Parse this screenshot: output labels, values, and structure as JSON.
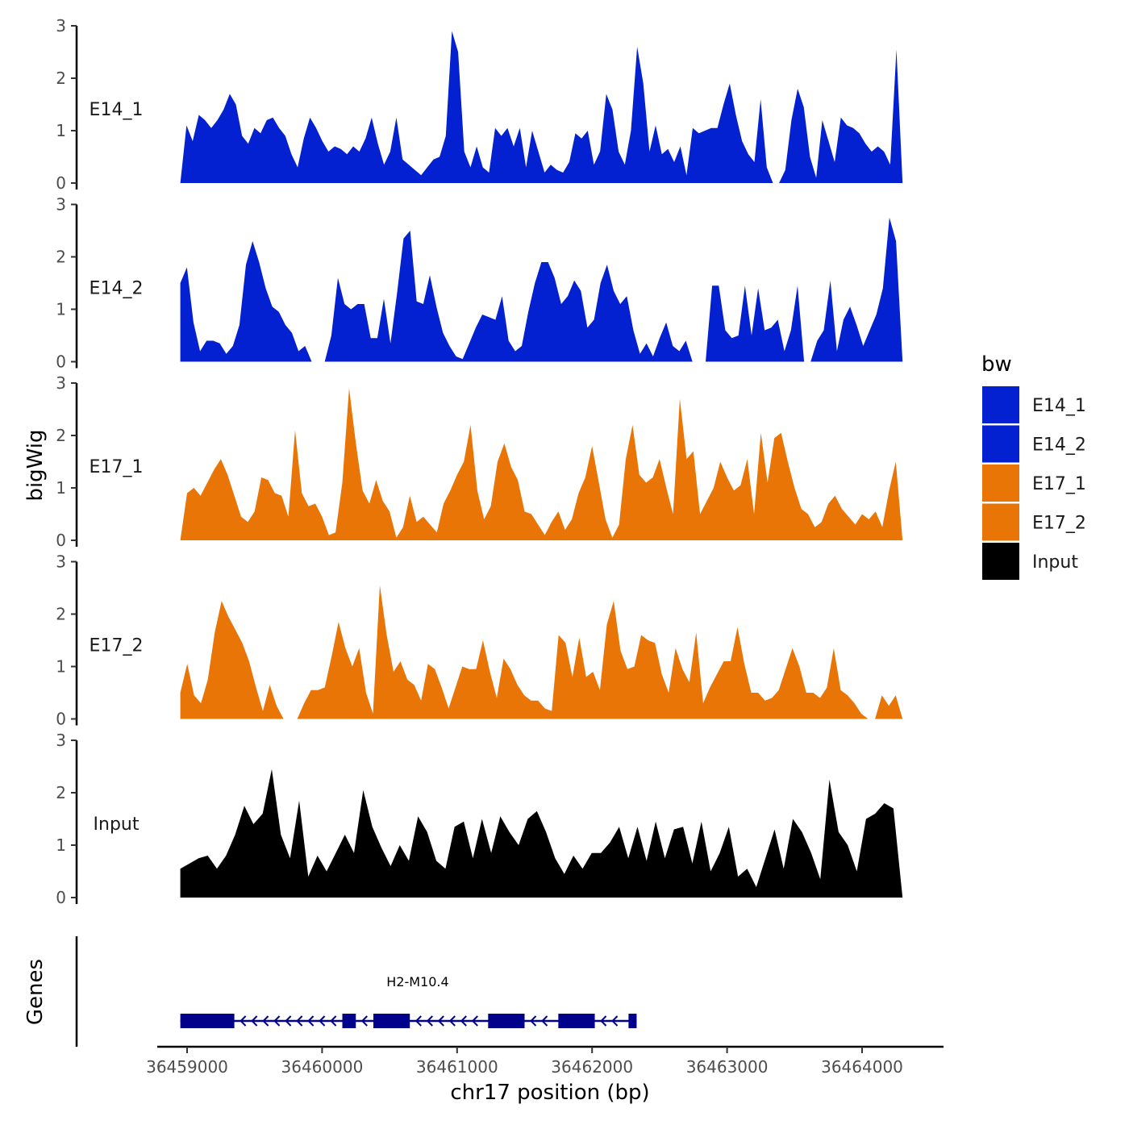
{
  "chart_data": {
    "type": "area",
    "title": "",
    "ylabel": "bigWig",
    "xlabel": "chr17 position (bp)",
    "ylim": [
      0,
      3
    ],
    "yticks": [
      0,
      1,
      2,
      3
    ],
    "xticks": [
      36459000,
      36460000,
      36461000,
      36462000,
      36463000,
      36464000
    ],
    "xlim": [
      36458700,
      36464650
    ],
    "data_range": [
      36458950,
      36464300
    ],
    "legend": {
      "title": "bw",
      "position": "right",
      "entries": [
        {
          "name": "E14_1",
          "color": "#0320D1"
        },
        {
          "name": "E14_2",
          "color": "#0320D1"
        },
        {
          "name": "E17_1",
          "color": "#E87506"
        },
        {
          "name": "E17_2",
          "color": "#E87506"
        },
        {
          "name": "Input",
          "color": "#000000"
        }
      ]
    },
    "series": [
      {
        "name": "E14_1",
        "color": "#0320D1",
        "values": [
          0.0,
          1.1,
          0.8,
          1.3,
          1.2,
          1.05,
          1.2,
          1.4,
          1.7,
          1.5,
          0.9,
          0.75,
          1.05,
          0.95,
          1.2,
          1.25,
          1.05,
          0.9,
          0.55,
          0.3,
          0.85,
          1.25,
          1.05,
          0.8,
          0.6,
          0.7,
          0.65,
          0.55,
          0.7,
          0.6,
          0.85,
          1.25,
          0.75,
          0.35,
          0.6,
          1.25,
          0.45,
          0.35,
          0.25,
          0.15,
          0.3,
          0.45,
          0.5,
          0.9,
          2.9,
          2.5,
          0.6,
          0.3,
          0.7,
          0.3,
          0.2,
          1.05,
          0.9,
          1.05,
          0.7,
          1.05,
          0.3,
          1.0,
          0.6,
          0.2,
          0.35,
          0.25,
          0.2,
          0.4,
          0.95,
          0.85,
          1.0,
          0.35,
          0.6,
          1.7,
          1.4,
          0.6,
          0.35,
          1.0,
          2.6,
          1.9,
          0.6,
          1.1,
          0.55,
          0.65,
          0.4,
          0.7,
          0.15,
          1.05,
          0.95,
          1.0,
          1.05,
          1.05,
          1.5,
          1.9,
          1.3,
          0.8,
          0.55,
          0.4,
          1.6,
          0.3,
          0.0,
          0.0,
          0.25,
          1.2,
          1.8,
          1.45,
          0.5,
          0.1,
          1.2,
          0.8,
          0.4,
          1.25,
          1.1,
          1.05,
          0.95,
          0.75,
          0.6,
          0.7,
          0.6,
          0.35,
          2.55,
          0.0
        ]
      },
      {
        "name": "E14_2",
        "color": "#0320D1",
        "values": [
          1.5,
          1.8,
          0.75,
          0.2,
          0.4,
          0.4,
          0.35,
          0.15,
          0.3,
          0.7,
          1.85,
          2.3,
          1.9,
          1.4,
          1.05,
          0.95,
          0.7,
          0.55,
          0.2,
          0.3,
          0.0,
          0.0,
          0.0,
          0.5,
          1.6,
          1.1,
          1.0,
          1.1,
          1.1,
          0.45,
          0.45,
          1.2,
          0.35,
          1.3,
          2.35,
          2.5,
          1.15,
          1.1,
          1.65,
          1.05,
          0.55,
          0.3,
          0.1,
          0.05,
          0.35,
          0.65,
          0.9,
          0.85,
          0.8,
          1.25,
          0.4,
          0.2,
          0.3,
          0.95,
          1.5,
          1.9,
          1.9,
          1.6,
          1.1,
          1.25,
          1.55,
          1.35,
          0.65,
          0.8,
          1.5,
          1.85,
          1.35,
          1.1,
          1.25,
          0.6,
          0.15,
          0.35,
          0.1,
          0.45,
          0.75,
          0.3,
          0.2,
          0.4,
          0.0,
          0.0,
          0.0,
          1.45,
          1.45,
          0.6,
          0.45,
          0.5,
          1.45,
          0.5,
          1.4,
          0.6,
          0.65,
          0.8,
          0.2,
          0.6,
          1.45,
          0.0,
          0.0,
          0.4,
          0.6,
          1.55,
          0.2,
          0.8,
          1.05,
          0.7,
          0.3,
          0.6,
          0.9,
          1.4,
          2.75,
          2.3,
          0.0
        ]
      },
      {
        "name": "E17_1",
        "color": "#E87506",
        "values": [
          0.0,
          0.9,
          1.0,
          0.85,
          1.1,
          1.35,
          1.55,
          1.25,
          0.85,
          0.45,
          0.35,
          0.55,
          1.2,
          1.15,
          0.9,
          0.85,
          0.45,
          2.1,
          0.9,
          0.65,
          0.7,
          0.45,
          0.1,
          0.15,
          1.1,
          2.9,
          1.85,
          0.95,
          0.7,
          1.15,
          0.75,
          0.55,
          0.05,
          0.25,
          0.85,
          0.35,
          0.45,
          0.3,
          0.15,
          0.7,
          0.95,
          1.25,
          1.5,
          2.2,
          0.95,
          0.4,
          0.65,
          1.5,
          1.85,
          1.4,
          1.15,
          0.55,
          0.5,
          0.3,
          0.1,
          0.35,
          0.55,
          0.2,
          0.4,
          0.9,
          1.2,
          1.8,
          1.1,
          0.4,
          0.05,
          0.3,
          1.55,
          2.2,
          1.25,
          1.1,
          1.2,
          1.55,
          1.0,
          0.5,
          2.7,
          1.55,
          1.7,
          0.5,
          0.75,
          1.0,
          1.5,
          1.2,
          0.95,
          1.05,
          1.55,
          0.5,
          2.05,
          1.1,
          1.95,
          2.05,
          1.5,
          1.0,
          0.6,
          0.5,
          0.25,
          0.35,
          0.7,
          0.85,
          0.6,
          0.45,
          0.3,
          0.5,
          0.4,
          0.55,
          0.25,
          0.95,
          1.5,
          0.0
        ]
      },
      {
        "name": "E17_2",
        "color": "#E87506",
        "values": [
          0.5,
          1.05,
          0.45,
          0.3,
          0.75,
          1.65,
          2.25,
          1.95,
          1.7,
          1.45,
          1.1,
          0.6,
          0.15,
          0.65,
          0.25,
          0.0,
          0.0,
          0.0,
          0.3,
          0.55,
          0.55,
          0.6,
          1.2,
          1.85,
          1.35,
          1.0,
          1.35,
          0.5,
          0.1,
          2.55,
          1.6,
          0.9,
          1.1,
          0.75,
          0.65,
          0.35,
          1.05,
          0.95,
          0.6,
          0.2,
          0.6,
          1.0,
          0.95,
          0.95,
          1.5,
          0.9,
          0.4,
          1.15,
          0.95,
          0.65,
          0.45,
          0.35,
          0.35,
          0.2,
          0.15,
          1.6,
          1.45,
          0.8,
          1.55,
          0.8,
          0.9,
          0.55,
          1.8,
          2.25,
          1.3,
          0.95,
          1.0,
          1.6,
          1.5,
          1.45,
          0.85,
          0.5,
          1.35,
          0.95,
          0.7,
          1.65,
          0.3,
          0.6,
          0.85,
          1.1,
          1.1,
          1.75,
          1.05,
          0.5,
          0.5,
          0.35,
          0.4,
          0.55,
          0.95,
          1.35,
          1.0,
          0.5,
          0.5,
          0.4,
          0.6,
          1.35,
          0.55,
          0.45,
          0.3,
          0.1,
          0.0,
          0.0,
          0.45,
          0.25,
          0.45,
          0.0
        ]
      },
      {
        "name": "Input",
        "color": "#000000",
        "values": [
          0.55,
          0.65,
          0.75,
          0.8,
          0.55,
          0.8,
          1.2,
          1.75,
          1.4,
          1.6,
          2.45,
          1.2,
          0.75,
          1.85,
          0.4,
          0.8,
          0.5,
          0.85,
          1.2,
          0.85,
          2.05,
          1.35,
          0.95,
          0.6,
          1.0,
          0.7,
          1.55,
          1.25,
          0.7,
          0.55,
          1.35,
          1.45,
          0.75,
          1.5,
          0.85,
          1.55,
          1.25,
          1.0,
          1.5,
          1.65,
          1.25,
          0.75,
          0.45,
          0.8,
          0.55,
          0.85,
          0.85,
          1.05,
          1.35,
          0.75,
          1.35,
          0.7,
          1.45,
          0.75,
          1.3,
          1.35,
          0.65,
          1.45,
          0.5,
          0.85,
          1.35,
          0.4,
          0.55,
          0.2,
          0.75,
          1.3,
          0.55,
          1.5,
          1.25,
          0.85,
          0.35,
          2.25,
          1.25,
          1.0,
          0.5,
          1.5,
          1.6,
          1.8,
          1.7,
          0.0
        ]
      }
    ],
    "genes": {
      "label": "Genes",
      "name": "H2-M10.4",
      "strand": "-",
      "color": "#00008B",
      "start": 36458950,
      "end": 36462330,
      "exons": [
        [
          36458950,
          36459350
        ],
        [
          36460150,
          36460250
        ],
        [
          36460380,
          36460650
        ],
        [
          36461230,
          36461500
        ],
        [
          36461750,
          36462020
        ],
        [
          36462270,
          36462330
        ]
      ]
    }
  }
}
